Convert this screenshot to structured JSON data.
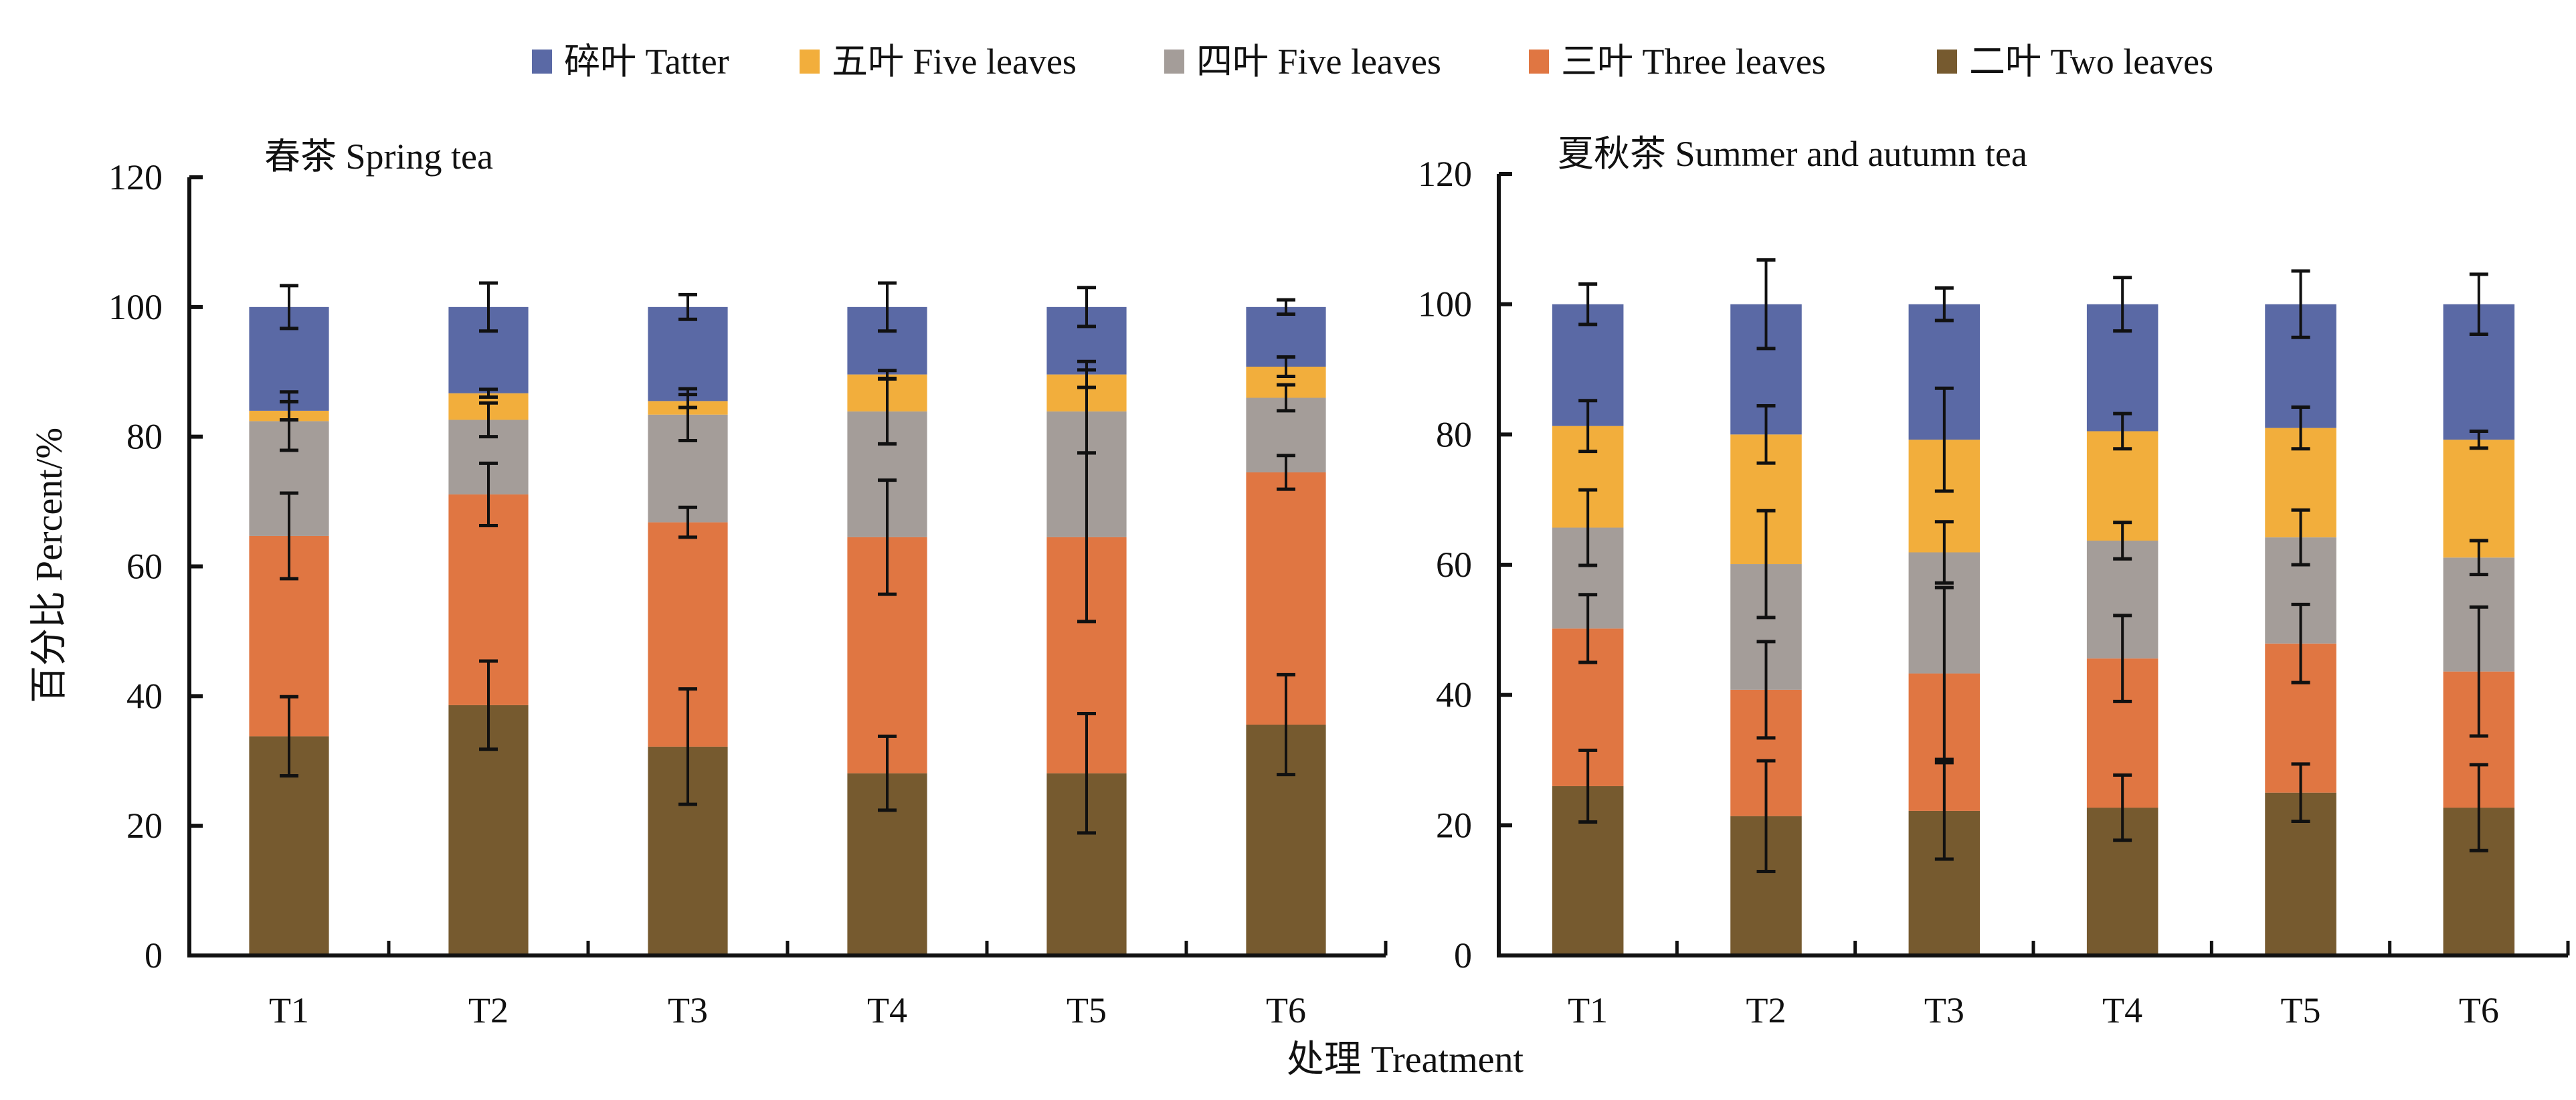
{
  "legend": [
    {
      "label": "碎叶 Tatter",
      "color": "#5A69A5"
    },
    {
      "label": "五叶 Five leaves",
      "color": "#F2AE3C"
    },
    {
      "label": "四叶 Five leaves",
      "color": "#A49D99"
    },
    {
      "label": "三叶 Three leaves",
      "color": "#E07642"
    },
    {
      "label": "二叶 Two leaves",
      "color": "#765A2F"
    }
  ],
  "ylabel": "百分比 Percent/%",
  "xlabel": "处理 Treatment",
  "chart_data": [
    {
      "type": "bar",
      "stacked": true,
      "title": "春茶 Spring tea",
      "categories": [
        "T1",
        "T2",
        "T3",
        "T4",
        "T5",
        "T6"
      ],
      "ylim": [
        0,
        120
      ],
      "yticks": [
        0,
        20,
        40,
        60,
        80,
        100,
        120
      ],
      "series": [
        {
          "name": "二叶 Two leaves",
          "values": [
            33.8,
            38.6,
            32.2,
            28.1,
            28.1,
            35.6
          ],
          "err": [
            6.1,
            6.8,
            8.9,
            5.7,
            9.2,
            7.7
          ]
        },
        {
          "name": "三叶 Three leaves",
          "values": [
            30.9,
            32.5,
            34.6,
            36.4,
            36.4,
            38.9
          ],
          "err": [
            6.6,
            4.8,
            2.3,
            8.8,
            13.0,
            2.6
          ]
        },
        {
          "name": "四叶 Five leaves",
          "values": [
            17.7,
            11.5,
            16.6,
            19.4,
            19.4,
            11.5
          ],
          "err": [
            4.5,
            2.6,
            4.0,
            5.0,
            6.4,
            2.0
          ]
        },
        {
          "name": "五叶 Five leaves",
          "values": [
            1.6,
            4.1,
            2.1,
            5.7,
            5.7,
            4.8
          ],
          "err": [
            1.4,
            0.6,
            1.0,
            0.6,
            2.0,
            1.5
          ]
        },
        {
          "name": "碎叶 Tatter",
          "values": [
            16.0,
            13.3,
            14.5,
            10.4,
            10.4,
            9.2
          ],
          "err": [
            3.3,
            3.7,
            1.9,
            3.7,
            3.0,
            1.1
          ]
        }
      ]
    },
    {
      "type": "bar",
      "stacked": true,
      "title": "夏秋茶 Summer and autumn tea",
      "categories": [
        "T1",
        "T2",
        "T3",
        "T4",
        "T5",
        "T6"
      ],
      "ylim": [
        0,
        120
      ],
      "yticks": [
        0,
        20,
        40,
        60,
        80,
        100,
        120
      ],
      "series": [
        {
          "name": "二叶 Two leaves",
          "values": [
            26.0,
            21.4,
            22.2,
            22.7,
            25.0,
            22.7
          ],
          "err": [
            5.5,
            8.5,
            7.4,
            5.0,
            4.4,
            6.6
          ]
        },
        {
          "name": "三叶 Three leaves",
          "values": [
            24.2,
            19.4,
            21.1,
            22.9,
            22.9,
            20.9
          ],
          "err": [
            5.2,
            7.4,
            13.2,
            6.6,
            6.0,
            9.9
          ]
        },
        {
          "name": "四叶 Five leaves",
          "values": [
            15.5,
            19.3,
            18.6,
            18.1,
            16.3,
            17.5
          ],
          "err": [
            5.8,
            8.2,
            4.7,
            2.8,
            4.2,
            2.6
          ]
        },
        {
          "name": "五叶 Five leaves",
          "values": [
            15.6,
            19.9,
            17.3,
            16.8,
            16.8,
            18.1
          ],
          "err": [
            3.9,
            4.4,
            7.9,
            2.7,
            3.2,
            1.3
          ]
        },
        {
          "name": "碎叶 Tatter",
          "values": [
            18.7,
            20.0,
            20.8,
            19.5,
            19.0,
            20.8
          ],
          "err": [
            3.1,
            6.8,
            2.5,
            4.1,
            5.1,
            4.6
          ]
        }
      ]
    }
  ]
}
